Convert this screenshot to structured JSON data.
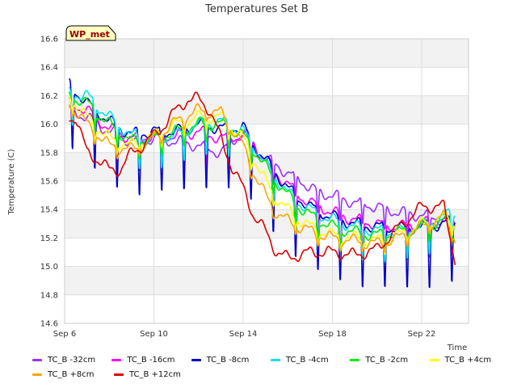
{
  "chart_data": {
    "type": "line",
    "title": "Temperatures Set B",
    "xlabel": "Time",
    "ylabel": "Temperature (C)",
    "badge": "WP_met",
    "x_ticks": [
      "Sep 6",
      "Sep 10",
      "Sep 14",
      "Sep 18",
      "Sep 22"
    ],
    "x_tick_days": [
      6,
      10,
      14,
      18,
      22
    ],
    "xlim": [
      6,
      24.1
    ],
    "y_ticks": [
      "14.6",
      "14.8",
      "15.0",
      "15.2",
      "15.4",
      "15.6",
      "15.8",
      "16.0",
      "16.2",
      "16.4",
      "16.6"
    ],
    "ylim": [
      14.6,
      16.6
    ],
    "grid": true,
    "legend_position": "bottom",
    "series": [
      {
        "name": "TC_B -32cm",
        "color": "#9b30ff",
        "x": [
          6.2,
          7,
          8,
          9,
          10,
          11,
          12,
          13,
          14,
          14.5,
          15,
          15.5,
          16,
          16.5,
          17,
          17.5,
          18,
          19,
          20,
          21,
          22,
          23,
          23.5
        ],
        "y": [
          16.1,
          16.05,
          15.95,
          15.88,
          15.9,
          15.88,
          15.85,
          15.8,
          15.95,
          15.85,
          15.75,
          15.72,
          15.65,
          15.62,
          15.55,
          15.52,
          15.5,
          15.45,
          15.42,
          15.38,
          15.36,
          15.33,
          15.3
        ],
        "dip": 0.18
      },
      {
        "name": "TC_B -16cm",
        "color": "#ff00ff",
        "x": [
          6.2,
          7,
          8,
          9,
          10,
          11,
          12,
          13,
          14,
          14.5,
          15,
          15.5,
          16,
          16.5,
          17,
          17.5,
          18,
          19,
          20,
          21,
          22,
          23,
          23.5
        ],
        "y": [
          16.15,
          16.1,
          15.97,
          15.9,
          15.92,
          15.92,
          15.95,
          15.9,
          15.92,
          15.85,
          15.75,
          15.65,
          15.58,
          15.5,
          15.45,
          15.42,
          15.38,
          15.33,
          15.3,
          15.28,
          15.3,
          15.32,
          15.3
        ],
        "dip": 0.26
      },
      {
        "name": "TC_B -8cm",
        "color": "#0000cc",
        "x": [
          6.2,
          7,
          8,
          9,
          10,
          11,
          12,
          13,
          14,
          14.5,
          15,
          15.5,
          16,
          16.5,
          17,
          17.5,
          18,
          19,
          20,
          21,
          22,
          23,
          23.5
        ],
        "y": [
          16.28,
          16.15,
          16.02,
          15.93,
          15.95,
          15.95,
          16.0,
          15.97,
          15.98,
          15.85,
          15.75,
          15.65,
          15.55,
          15.48,
          15.42,
          15.38,
          15.35,
          15.3,
          15.28,
          15.27,
          15.28,
          15.3,
          15.33
        ],
        "dip": 0.45
      },
      {
        "name": "TC_B -4cm",
        "color": "#00e5ee",
        "x": [
          6.2,
          7,
          8,
          9,
          10,
          11,
          12,
          13,
          14,
          14.5,
          15,
          15.5,
          16,
          16.5,
          17,
          17.5,
          18,
          19,
          20,
          21,
          22,
          23,
          23.5
        ],
        "y": [
          16.22,
          16.2,
          16.05,
          15.92,
          15.9,
          15.92,
          16.0,
          16.02,
          15.95,
          15.85,
          15.72,
          15.62,
          15.52,
          15.45,
          15.4,
          15.36,
          15.33,
          15.28,
          15.25,
          15.25,
          15.28,
          15.35,
          15.38
        ],
        "dip": 0.22
      },
      {
        "name": "TC_B -2cm",
        "color": "#00ee00",
        "x": [
          6.2,
          7,
          8,
          9,
          10,
          11,
          12,
          13,
          14,
          14.5,
          15,
          15.5,
          16,
          16.5,
          17,
          17.5,
          18,
          19,
          20,
          21,
          22,
          23,
          23.5
        ],
        "y": [
          16.2,
          16.15,
          16.0,
          15.88,
          15.9,
          15.95,
          16.0,
          16.0,
          15.92,
          15.82,
          15.7,
          15.6,
          15.5,
          15.42,
          15.36,
          15.32,
          15.28,
          15.24,
          15.22,
          15.24,
          15.28,
          15.32,
          15.3
        ],
        "dip": 0.12
      },
      {
        "name": "TC_B +4cm",
        "color": "#ffff00",
        "x": [
          6.2,
          7,
          8,
          9,
          10,
          11,
          12,
          13,
          14,
          14.5,
          15,
          15.5,
          16,
          16.5,
          17,
          17.5,
          18,
          19,
          20,
          21,
          22,
          23,
          23.5
        ],
        "y": [
          16.2,
          16.05,
          15.9,
          15.85,
          15.92,
          16.0,
          16.05,
          16.05,
          15.9,
          15.75,
          15.6,
          15.48,
          15.4,
          15.33,
          15.28,
          15.25,
          15.22,
          15.2,
          15.18,
          15.22,
          15.3,
          15.35,
          15.3
        ],
        "dip": 0.08
      },
      {
        "name": "TC_B +8cm",
        "color": "#ffa500",
        "x": [
          6.2,
          7,
          8,
          9,
          10,
          11,
          12,
          13,
          14,
          14.5,
          15,
          15.5,
          16,
          16.5,
          17,
          17.5,
          18,
          19,
          20,
          21,
          22,
          23,
          23.5
        ],
        "y": [
          16.15,
          16.0,
          15.85,
          15.82,
          15.9,
          16.02,
          16.1,
          16.08,
          15.85,
          15.65,
          15.5,
          15.38,
          15.32,
          15.28,
          15.25,
          15.22,
          15.2,
          15.18,
          15.16,
          15.2,
          15.28,
          15.35,
          15.2
        ],
        "dip": 0.05
      },
      {
        "name": "TC_B +12cm",
        "color": "#dd0000",
        "x": [
          6.2,
          6.5,
          7,
          7.5,
          8,
          8.5,
          9,
          9.5,
          10,
          10.5,
          11,
          11.5,
          12,
          12.5,
          13,
          13.5,
          14,
          14.5,
          15,
          15.5,
          16,
          16.5,
          17,
          18,
          19,
          20,
          21,
          22,
          23,
          23.5
        ],
        "y": [
          16.04,
          16.05,
          15.8,
          15.75,
          15.68,
          15.68,
          15.8,
          15.85,
          15.92,
          16.0,
          16.1,
          16.17,
          16.18,
          16.1,
          15.9,
          15.7,
          15.55,
          15.35,
          15.25,
          15.1,
          15.06,
          15.08,
          15.1,
          15.1,
          15.08,
          15.12,
          15.28,
          15.42,
          15.42,
          15.05
        ],
        "dip": 0.0
      }
    ]
  }
}
